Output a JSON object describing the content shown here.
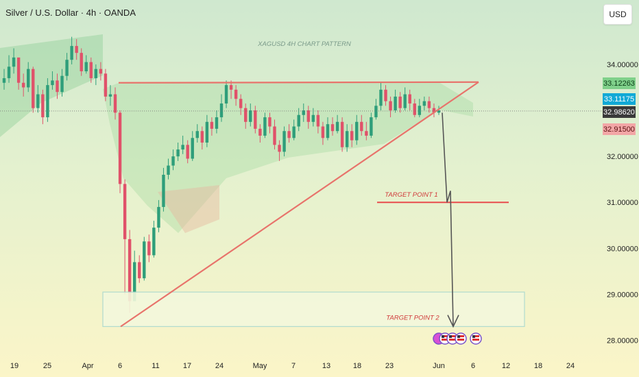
{
  "header": {
    "title": "Silver / U.S. Dollar · 4h · OANDA",
    "currency_button": "USD"
  },
  "chart_data": {
    "type": "line",
    "title": "XAGUSD 4H CHART PATTERN",
    "ylim": [
      27.65,
      35.4
    ],
    "y_ticks": [
      {
        "value": 34.0,
        "label": "34.00000"
      },
      {
        "value": 32.0,
        "label": "32.00000"
      },
      {
        "value": 31.0,
        "label": "31.00000"
      },
      {
        "value": 30.0,
        "label": "30.00000"
      },
      {
        "value": 29.0,
        "label": "29.00000"
      },
      {
        "value": 28.0,
        "label": "28.00000"
      }
    ],
    "x_ticks": [
      "19",
      "25",
      "Apr",
      "6",
      "11",
      "17",
      "24",
      "May",
      "7",
      "13",
      "18",
      "23",
      "Jun",
      "6",
      "12",
      "18",
      "24"
    ],
    "price_tags": [
      {
        "label": "33.12263",
        "value": 33.12263,
        "bg": "#7fd08a",
        "fg": "#0b3d17"
      },
      {
        "label": "33.11175",
        "value": 33.11175,
        "bg": "#11a9d6",
        "fg": "#ffffff"
      },
      {
        "label": "32.98620",
        "value": 32.9862,
        "bg": "#3a3a3a",
        "fg": "#ffffff"
      },
      {
        "label": "32.91500",
        "value": 32.915,
        "bg": "#f2a6a6",
        "fg": "#5a1010"
      }
    ],
    "series": [
      {
        "name": "XAGUSD",
        "close": [
          33.7,
          33.95,
          34.15,
          33.6,
          33.5,
          33.9,
          33.05,
          33.35,
          32.85,
          33.55,
          33.65,
          33.4,
          33.75,
          34.1,
          34.4,
          34.25,
          33.85,
          34.05,
          33.7,
          33.9,
          33.8,
          33.3,
          33.35,
          32.95,
          31.4,
          30.2,
          28.85,
          29.7,
          29.35,
          30.15,
          29.85,
          30.45,
          30.9,
          31.6,
          31.8,
          32.0,
          32.15,
          32.25,
          31.95,
          32.4,
          32.55,
          32.3,
          32.75,
          32.6,
          32.85,
          33.15,
          33.55,
          33.45,
          33.25,
          33.05,
          32.75,
          33.0,
          32.6,
          32.45,
          32.85,
          32.65,
          32.25,
          32.1,
          32.55,
          32.4,
          32.65,
          32.9,
          33.0,
          32.75,
          32.9,
          32.65,
          32.4,
          32.7,
          32.55,
          32.75,
          32.2,
          32.55,
          32.35,
          32.75,
          32.55,
          32.45,
          32.85,
          33.1,
          33.45,
          33.2,
          33.0,
          33.3,
          33.05,
          33.35,
          33.15,
          32.9,
          33.1,
          33.2,
          33.05,
          32.95,
          33.0
        ],
        "high": [
          33.9,
          34.2,
          34.35,
          34.05,
          33.8,
          34.05,
          33.95,
          33.55,
          33.45,
          33.7,
          33.85,
          33.8,
          33.9,
          34.25,
          34.6,
          34.55,
          34.35,
          34.2,
          34.15,
          34.0,
          34.05,
          33.9,
          33.55,
          33.5,
          33.0,
          31.5,
          30.4,
          29.95,
          29.85,
          30.25,
          30.3,
          30.6,
          31.05,
          31.75,
          31.95,
          32.15,
          32.3,
          32.45,
          32.35,
          32.55,
          32.7,
          32.65,
          32.9,
          32.85,
          33.0,
          33.35,
          33.65,
          33.65,
          33.55,
          33.35,
          33.15,
          33.15,
          33.1,
          32.7,
          32.95,
          32.95,
          32.8,
          32.35,
          32.65,
          32.7,
          32.8,
          33.05,
          33.15,
          33.1,
          33.05,
          33.0,
          32.75,
          32.85,
          32.85,
          32.9,
          32.85,
          32.7,
          32.7,
          32.9,
          32.9,
          32.75,
          32.95,
          33.25,
          33.6,
          33.55,
          33.3,
          33.45,
          33.4,
          33.5,
          33.45,
          33.25,
          33.25,
          33.3,
          33.3,
          33.15,
          33.1
        ],
        "low": [
          33.45,
          33.6,
          33.8,
          33.45,
          33.3,
          33.4,
          32.95,
          32.95,
          32.7,
          32.75,
          33.45,
          33.25,
          33.3,
          33.65,
          34.0,
          34.1,
          33.75,
          33.8,
          33.6,
          33.55,
          33.65,
          33.2,
          33.1,
          32.8,
          31.2,
          29.0,
          28.6,
          28.85,
          29.25,
          29.3,
          29.7,
          29.8,
          30.35,
          30.8,
          31.5,
          31.7,
          31.9,
          32.05,
          31.85,
          31.9,
          32.3,
          32.15,
          32.2,
          32.45,
          32.5,
          32.75,
          33.05,
          33.25,
          33.1,
          32.9,
          32.6,
          32.65,
          32.5,
          32.3,
          32.4,
          32.5,
          32.15,
          31.9,
          32.0,
          32.3,
          32.35,
          32.55,
          32.75,
          32.6,
          32.65,
          32.5,
          32.25,
          32.35,
          32.45,
          32.5,
          32.1,
          32.1,
          32.2,
          32.25,
          32.45,
          32.35,
          32.4,
          32.8,
          33.0,
          33.1,
          32.85,
          32.95,
          32.95,
          33.0,
          33.0,
          32.85,
          32.85,
          33.0,
          32.95,
          32.85,
          32.9
        ]
      }
    ],
    "annotations": [
      {
        "text": "TARGET POINT 1",
        "price": 31.0
      },
      {
        "text": "TARGET POINT 2",
        "price": 28.3
      }
    ],
    "resistance_price": 33.6,
    "target_zone": [
      28.3,
      29.05
    ],
    "legend": "none",
    "grid": false
  },
  "colors": {
    "candle_up": "#2e9e7a",
    "candle_down": "#e0526a",
    "pattern_line": "#e8736b",
    "target_line": "#e84c4c",
    "arrow": "#555555",
    "annotation_text": "#d03b3b",
    "pattern_text": "#7a9a8a"
  },
  "icons": [
    "calendar-event-icon",
    "us-flag-icon"
  ]
}
